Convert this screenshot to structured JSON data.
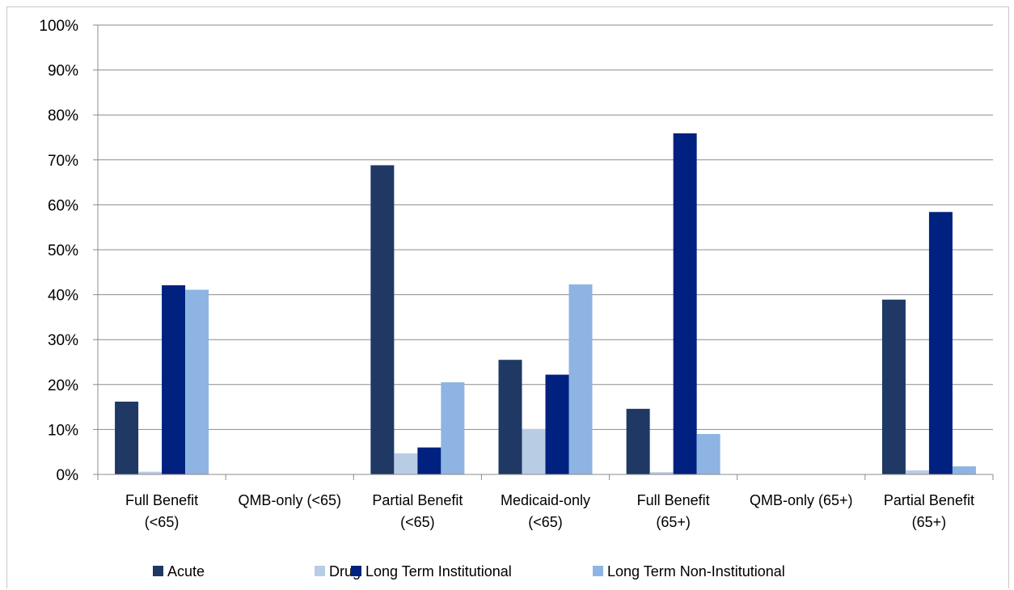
{
  "chart_data": {
    "type": "bar",
    "title": "",
    "xlabel": "",
    "ylabel": "",
    "ylim": [
      0,
      100
    ],
    "y_ticks": [
      "0%",
      "10%",
      "20%",
      "30%",
      "40%",
      "50%",
      "60%",
      "70%",
      "80%",
      "90%",
      "100%"
    ],
    "grid": true,
    "legend_position": "bottom",
    "categories": [
      [
        "Full Benefit",
        "(<65)"
      ],
      [
        "QMB-only (<65)"
      ],
      [
        "Partial Benefit",
        "(<65)"
      ],
      [
        "Medicaid-only",
        "(<65)"
      ],
      [
        "Full Benefit",
        "(65+)"
      ],
      [
        "QMB-only (65+)"
      ],
      [
        "Partial Benefit",
        "(65+)"
      ]
    ],
    "series": [
      {
        "name": "Acute",
        "color": "#1f3864",
        "values": [
          16.2,
          0,
          68.8,
          25.5,
          14.6,
          0,
          38.9
        ]
      },
      {
        "name": "Drug",
        "color": "#b8cce4",
        "values": [
          0.6,
          0,
          4.7,
          10.1,
          0.5,
          0,
          0.9
        ]
      },
      {
        "name": "Long Term Institutional",
        "color": "#002180",
        "values": [
          42.1,
          0,
          6.0,
          22.2,
          75.9,
          0,
          58.4
        ]
      },
      {
        "name": "Long Term Non-Institutional",
        "color": "#8eb4e3",
        "values": [
          41.1,
          0,
          20.5,
          42.3,
          9.0,
          0,
          1.8
        ]
      }
    ]
  }
}
